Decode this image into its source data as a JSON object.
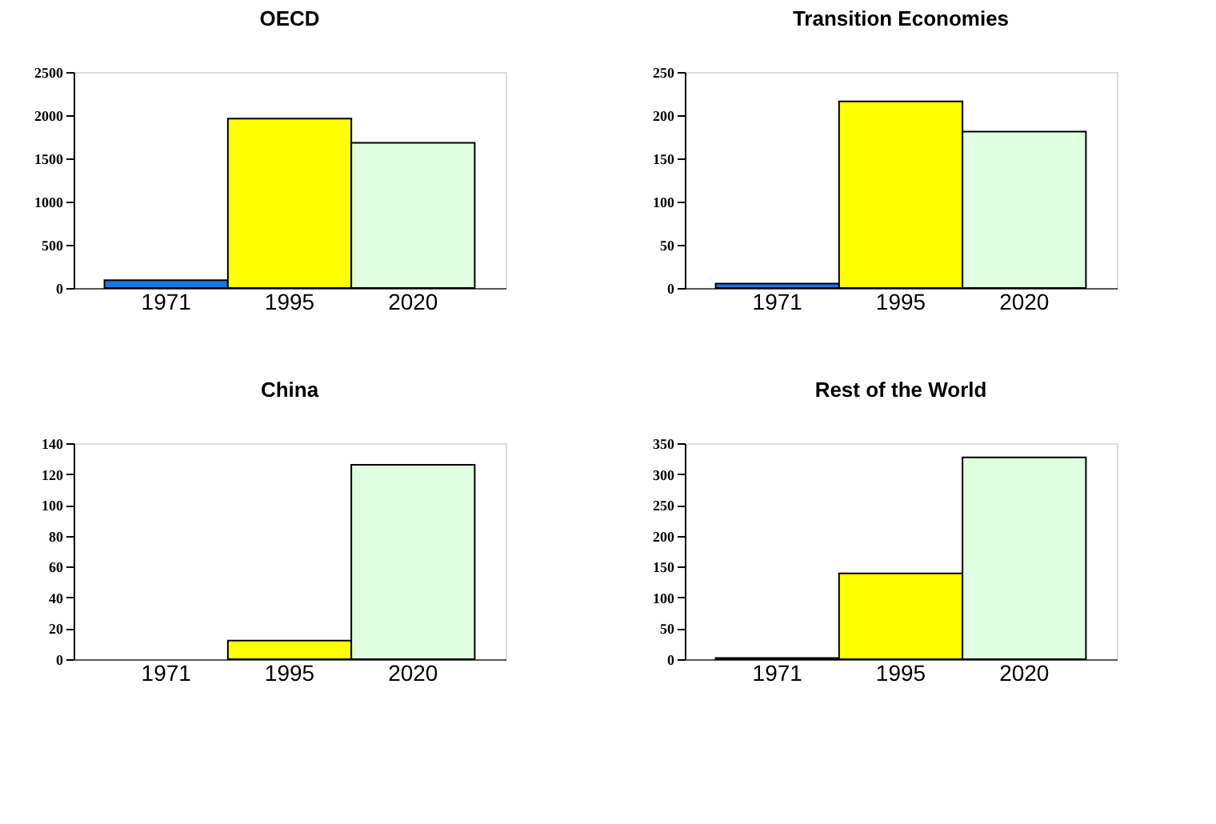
{
  "chart_data": [
    {
      "type": "bar",
      "title": "OECD",
      "categories": [
        "1971",
        "1995",
        "2020"
      ],
      "values": [
        90,
        1960,
        1680
      ],
      "colors": [
        "#1874e8",
        "#ffff00",
        "#e0ffe0"
      ],
      "ylim": [
        0,
        2500
      ],
      "yticks": [
        0,
        500,
        1000,
        1500,
        2000,
        2500
      ],
      "grid": false
    },
    {
      "type": "bar",
      "title": "Transition Economies",
      "categories": [
        "1971",
        "1995",
        "2020"
      ],
      "values": [
        5,
        216,
        181
      ],
      "colors": [
        "#1874e8",
        "#ffff00",
        "#e0ffe0"
      ],
      "ylim": [
        0,
        250
      ],
      "yticks": [
        0,
        50,
        100,
        150,
        200,
        250
      ],
      "grid": false
    },
    {
      "type": "bar",
      "title": "China",
      "categories": [
        "1971",
        "1995",
        "2020"
      ],
      "values": [
        null,
        12,
        126
      ],
      "colors": [
        null,
        "#ffff00",
        "#e0ffe0"
      ],
      "ylim": [
        0,
        140
      ],
      "yticks": [
        0,
        20,
        40,
        60,
        80,
        100,
        120,
        140
      ],
      "grid": false
    },
    {
      "type": "bar",
      "title": "Rest of the World",
      "categories": [
        "1971",
        "1995",
        "2020"
      ],
      "values": [
        2,
        139,
        327
      ],
      "colors": [
        "#1874e8",
        "#ffff00",
        "#e0ffe0"
      ],
      "ylim": [
        0,
        350
      ],
      "yticks": [
        0,
        50,
        100,
        150,
        200,
        250,
        300,
        350
      ],
      "grid": false
    }
  ]
}
